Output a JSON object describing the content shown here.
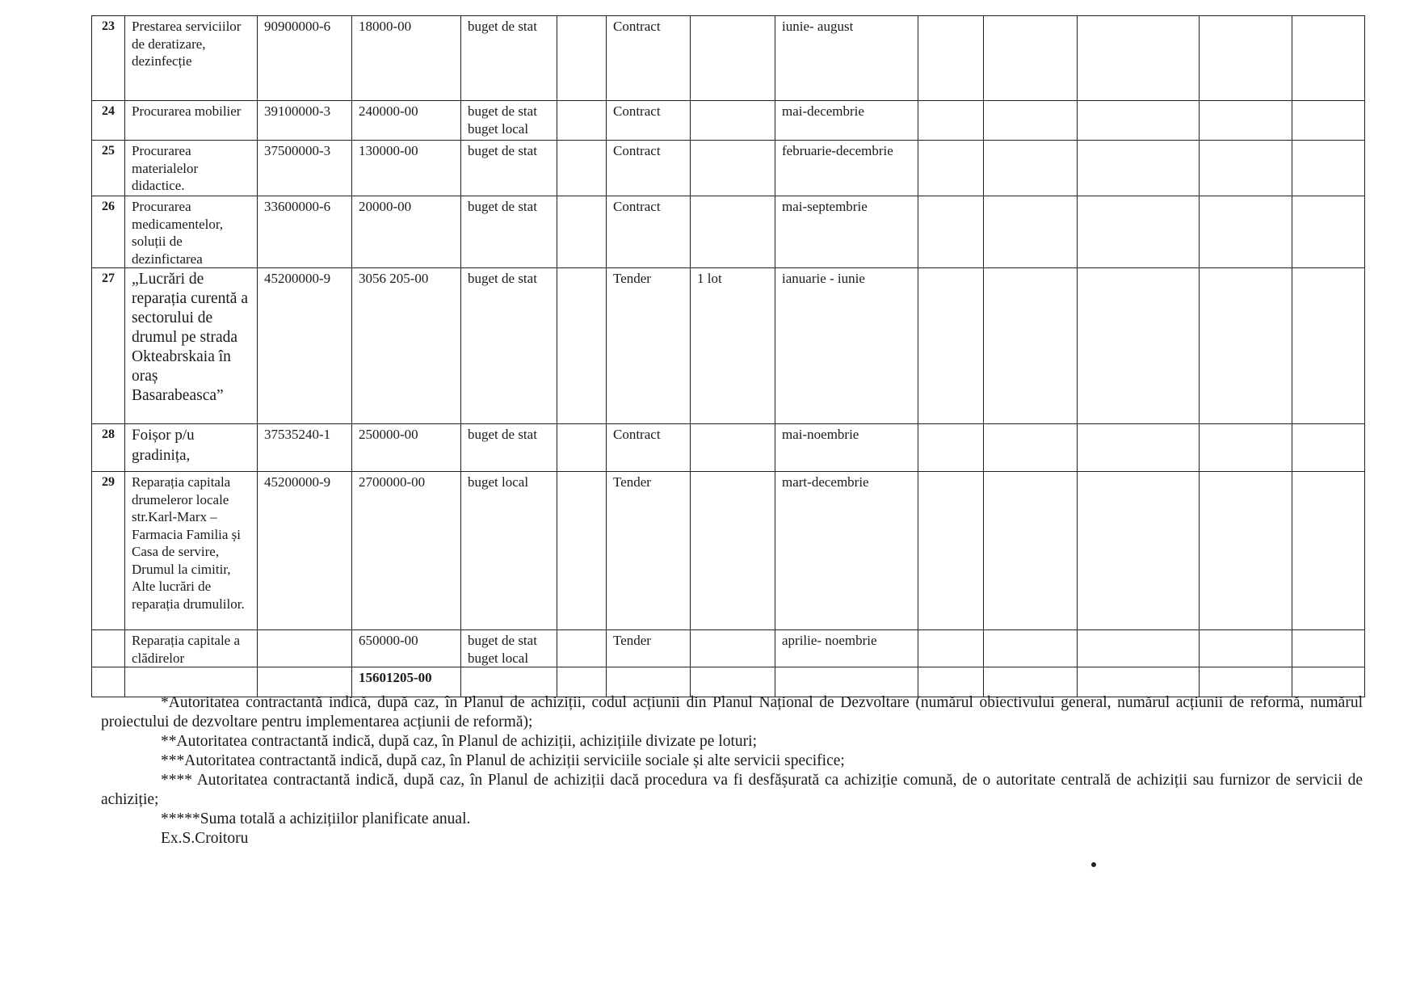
{
  "table": {
    "rows": [
      {
        "nr": "23",
        "object": "Prestarea serviciilor de deratizare, dezinfecție",
        "cpv": "90900000-6",
        "value": "18000-00",
        "source": [
          "buget de stat"
        ],
        "procedure": "Contract",
        "lots": "",
        "period": "iunie- august"
      },
      {
        "nr": "24",
        "object": "Procurarea mobilier",
        "cpv": "39100000-3",
        "value": "240000-00",
        "source": [
          "buget de stat",
          "buget  local"
        ],
        "procedure": "Contract",
        "lots": "",
        "period": "mai-decembrie"
      },
      {
        "nr": "25",
        "object": "Procurarea materialelor didactice.",
        "cpv": "37500000-3",
        "value": "130000-00",
        "source": [
          "buget de stat"
        ],
        "procedure": "Contract",
        "lots": "",
        "period": "februarie-decembrie"
      },
      {
        "nr": "26",
        "object": "Procurarea medicamentelor, soluții de dezinfictarea",
        "cpv": "33600000-6",
        "value": "20000-00",
        "source": [
          "buget de stat"
        ],
        "procedure": "Contract",
        "lots": "",
        "period": "mai-septembrie"
      },
      {
        "nr": "27",
        "object": "„Lucrări de reparația curentă a sectorului de drumul pe strada Okteabrskaia în oraș Basarabeasca”",
        "cpv": "45200000-9",
        "value": "3056 205-00",
        "source": [
          "buget de stat"
        ],
        "procedure": "Tender",
        "lots": "1 lot",
        "period": "ianuarie - iunie"
      },
      {
        "nr": "28",
        "object": "Foișor p/u gradinița,",
        "cpv": "37535240-1",
        "value": "250000-00",
        "source": [
          "buget de stat"
        ],
        "procedure": "Contract",
        "lots": "",
        "period": "mai-noembrie"
      },
      {
        "nr": "29",
        "object": "Reparația capitala drumeleror locale str.Karl-Marx – Farmacia Familia și Casa de servire, Drumul la cimitir, Alte lucrări de reparația drumulilor.",
        "cpv": "45200000-9",
        "value": "2700000-00",
        "source": [
          "buget  local"
        ],
        "procedure": "Tender",
        "lots": "",
        "period": "mart-decembrie"
      },
      {
        "nr": "",
        "object": "Reparația capitale a clădirelor",
        "cpv": "",
        "value": "650000-00",
        "source": [
          "buget de stat",
          "buget  local"
        ],
        "procedure": "Tender",
        "lots": "",
        "period": "aprilie- noembrie"
      }
    ],
    "total": "15601205-00"
  },
  "footnotes": [
    "*Autoritatea contractantă indică, după caz, în Planul de achiziții, codul acțiunii din Planul Național de Dezvoltare (numărul obiectivului general, numărul acțiunii de reformă, numărul proiectului de dezvoltare pentru implementarea acțiunii de reformă);",
    "**Autoritatea contractantă indică, după caz, în Planul de achiziții, achizițiile divizate pe loturi;",
    "***Autoritatea contractantă indică, după caz, în Planul de achiziții serviciile sociale și alte servicii specifice;",
    "**** Autoritatea contractantă indică, după caz, în Planul de achiziții dacă procedura va fi desfășurată ca achiziție comună, de o autoritate centrală de achiziții sau furnizor de servicii de achiziție;",
    "*****Suma totală a achizițiilor planificate anual."
  ],
  "signature": "Ex.S.Croitoru"
}
